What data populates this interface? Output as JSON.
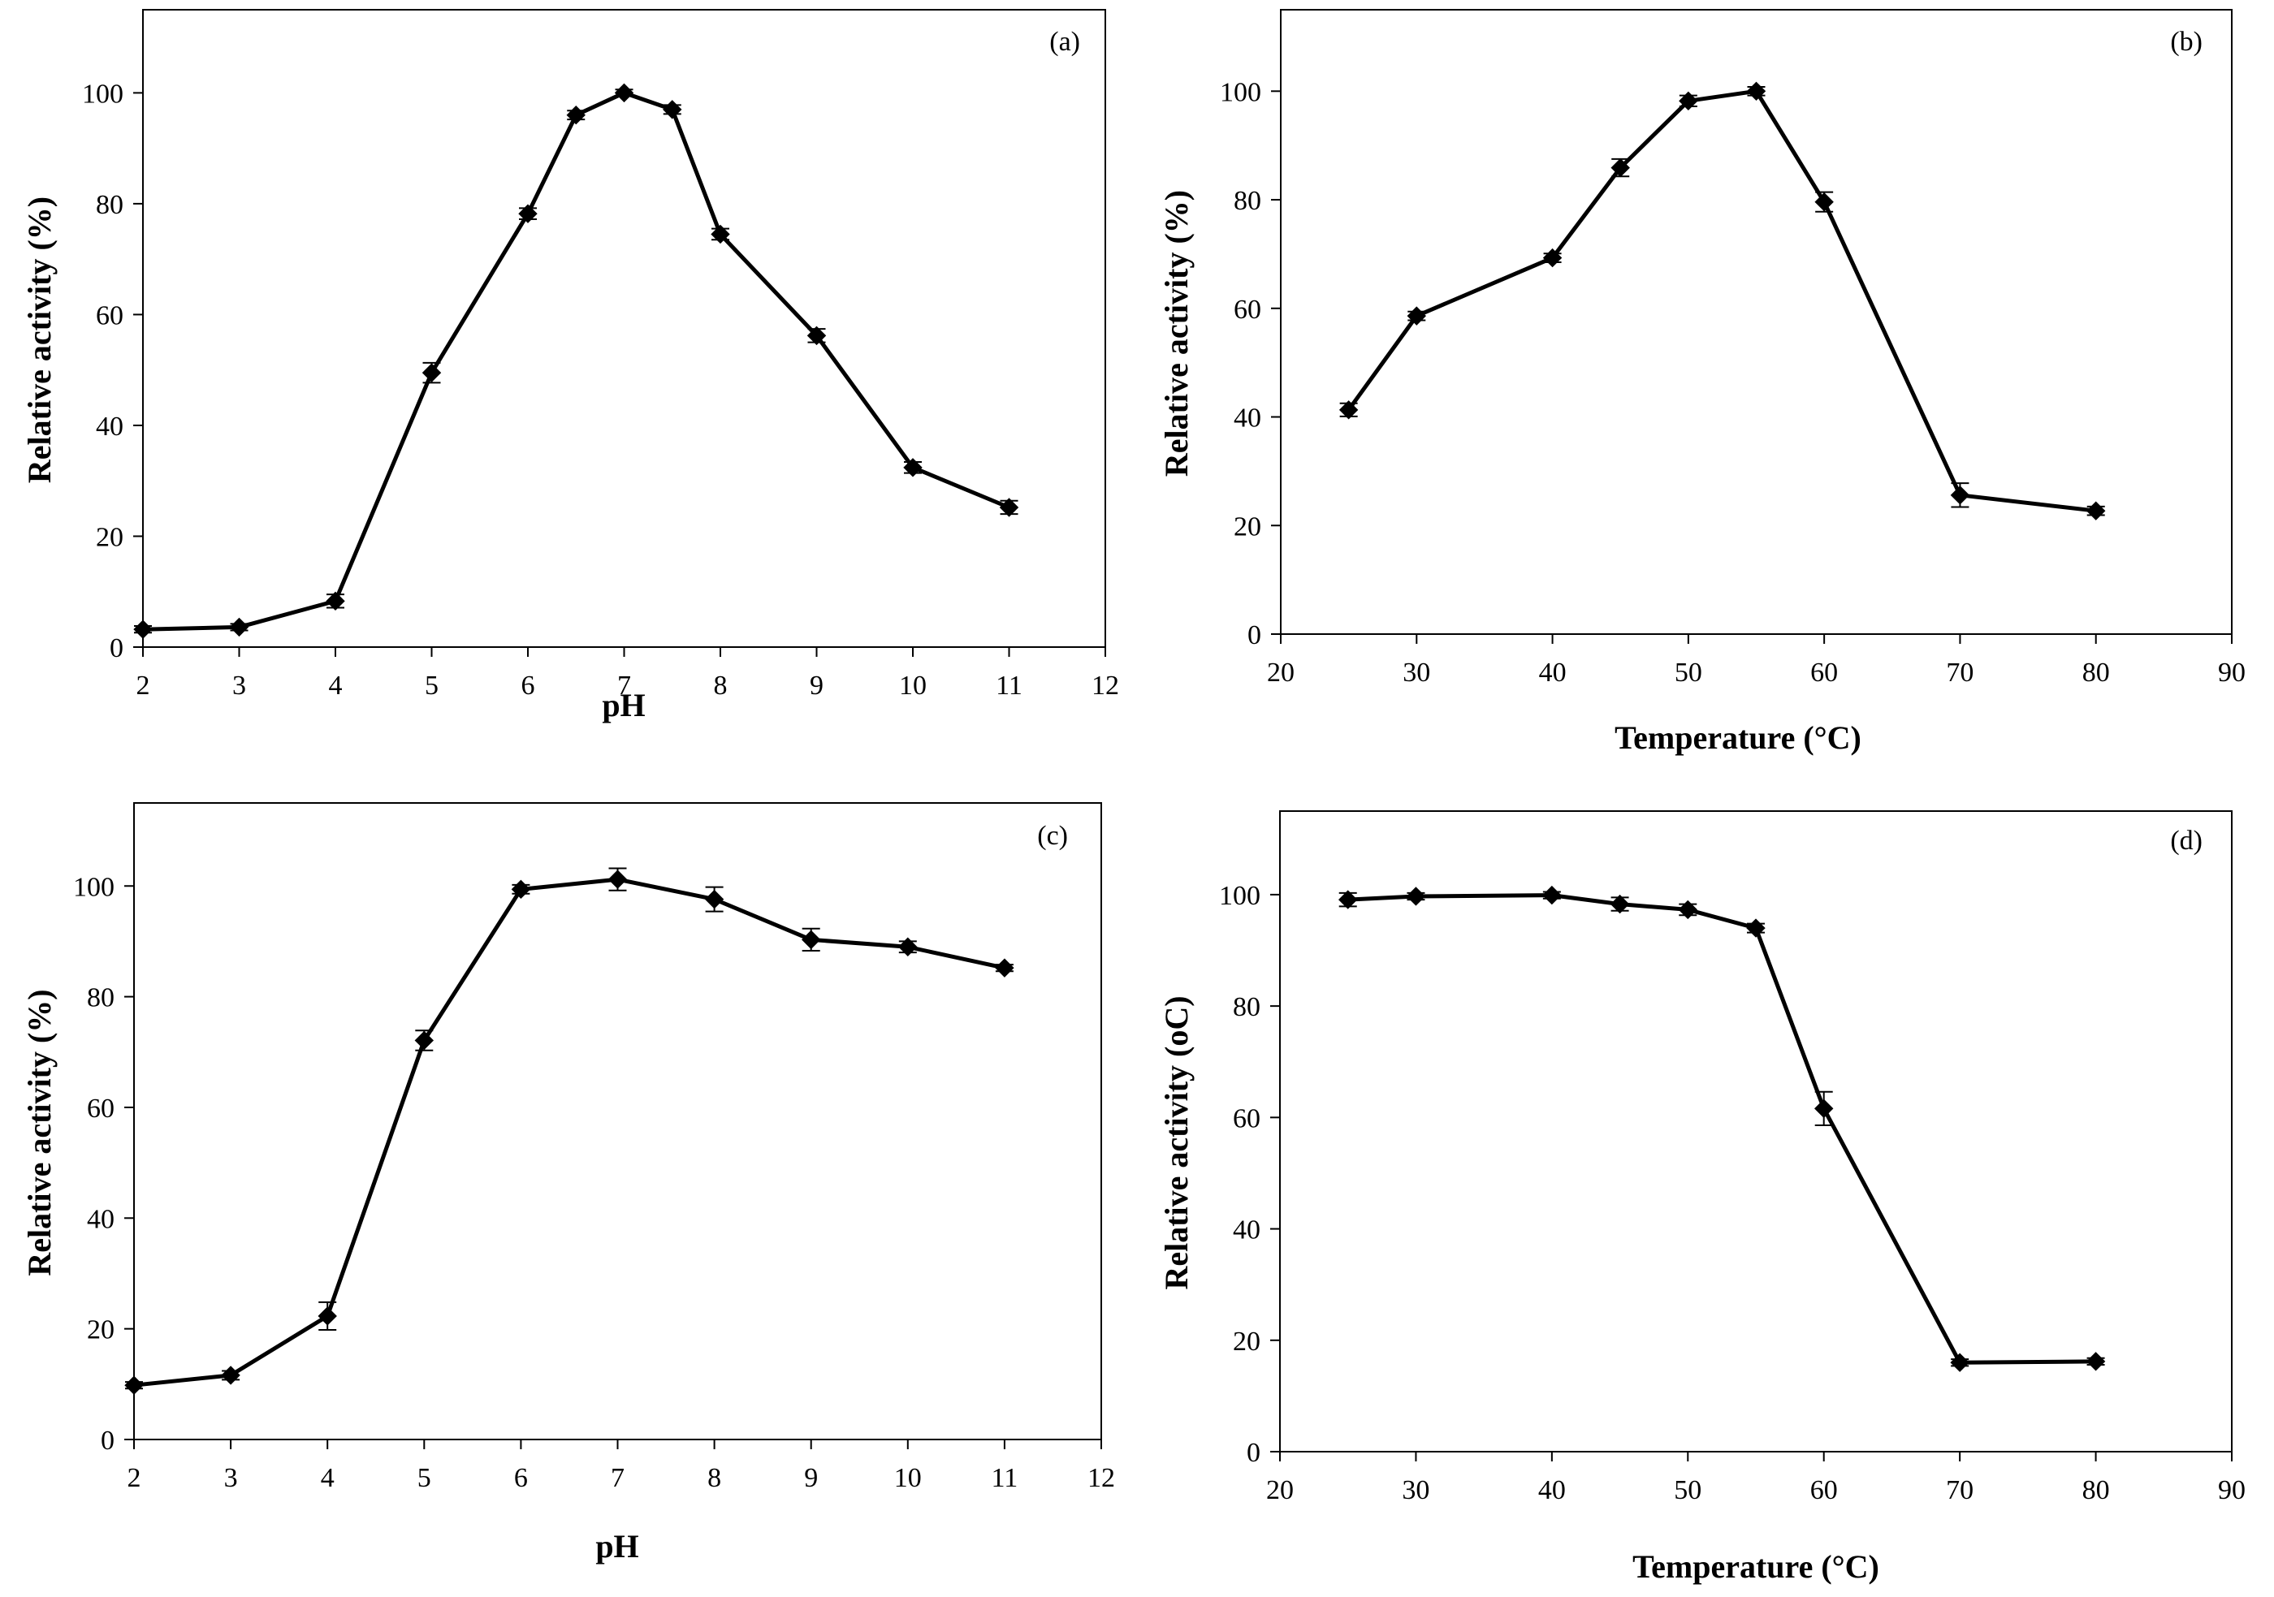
{
  "chart_data": [
    {
      "type": "line",
      "panel_label": "(a)",
      "xlabel": "pH",
      "ylabel": "Relative activity (%)",
      "xlim": [
        2,
        12
      ],
      "ylim": [
        0,
        115
      ],
      "xticks": [
        2,
        3,
        4,
        5,
        6,
        7,
        8,
        9,
        10,
        11,
        12
      ],
      "yticks": [
        0,
        20,
        40,
        60,
        80,
        100
      ],
      "grid": false,
      "marker": "diamond",
      "x": [
        2,
        3,
        4,
        5,
        6,
        6.5,
        7,
        7.5,
        8,
        9,
        10,
        11
      ],
      "y": [
        3.2,
        3.6,
        8.3,
        49.5,
        78.2,
        96.0,
        100.0,
        97.0,
        74.5,
        56.2,
        32.4,
        25.2
      ],
      "err": [
        0.6,
        0.6,
        1.2,
        1.8,
        1.0,
        0.8,
        0.6,
        0.8,
        1.0,
        1.2,
        1.0,
        1.2
      ]
    },
    {
      "type": "line",
      "panel_label": "(b)",
      "xlabel": "Temperature (°C)",
      "ylabel": "Relative activity (%)",
      "xlim": [
        20,
        90
      ],
      "ylim": [
        0,
        115
      ],
      "xticks": [
        20,
        30,
        40,
        50,
        60,
        70,
        80,
        90
      ],
      "yticks": [
        0,
        20,
        40,
        60,
        80,
        100
      ],
      "grid": false,
      "marker": "diamond",
      "x": [
        25,
        30,
        40,
        45,
        50,
        55,
        60,
        70,
        80
      ],
      "y": [
        41.3,
        58.6,
        69.3,
        85.9,
        98.2,
        100.0,
        79.6,
        25.6,
        22.7
      ],
      "err": [
        1.2,
        0.8,
        0.8,
        1.6,
        1.0,
        0.8,
        1.8,
        2.2,
        0.8
      ]
    },
    {
      "type": "line",
      "panel_label": "(c)",
      "xlabel": "pH",
      "ylabel": "Relative activity (%)",
      "xlim": [
        2,
        12
      ],
      "ylim": [
        0,
        115
      ],
      "xticks": [
        2,
        3,
        4,
        5,
        6,
        7,
        8,
        9,
        10,
        11,
        12
      ],
      "yticks": [
        0,
        20,
        40,
        60,
        80,
        100
      ],
      "grid": false,
      "marker": "diamond",
      "x": [
        2,
        3,
        4,
        5,
        6,
        7,
        8,
        9,
        10,
        11
      ],
      "y": [
        9.8,
        11.6,
        22.3,
        72.1,
        99.4,
        101.2,
        97.6,
        90.3,
        89.0,
        85.2
      ],
      "err": [
        0.6,
        0.8,
        2.5,
        1.8,
        0.8,
        2.0,
        2.2,
        2.0,
        1.0,
        0.6
      ]
    },
    {
      "type": "line",
      "panel_label": "(d)",
      "xlabel": "Temperature (°C)",
      "ylabel": "Relative activity (oC)",
      "xlim": [
        20,
        90
      ],
      "ylim": [
        0,
        115
      ],
      "xticks": [
        20,
        30,
        40,
        50,
        60,
        70,
        80,
        90
      ],
      "yticks": [
        0,
        20,
        40,
        60,
        80,
        100
      ],
      "grid": false,
      "marker": "diamond",
      "x": [
        25,
        30,
        40,
        45,
        50,
        55,
        60,
        70,
        80
      ],
      "y": [
        99.1,
        99.7,
        99.9,
        98.3,
        97.3,
        94.0,
        61.6,
        16.0,
        16.2
      ],
      "err": [
        1.2,
        0.6,
        0.6,
        1.2,
        1.0,
        0.8,
        3.0,
        0.6,
        0.6
      ]
    }
  ]
}
